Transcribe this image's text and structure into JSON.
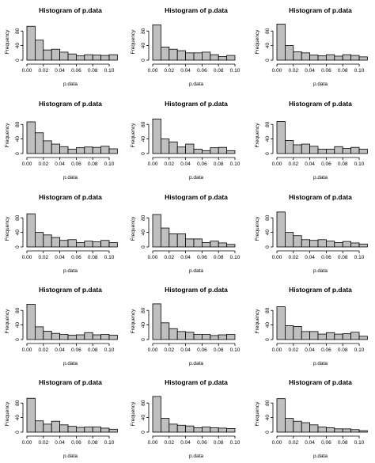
{
  "chart_data": [
    {
      "type": "bar",
      "title": "Histogram of p.data",
      "xlabel": "p.data",
      "ylabel": "Frequency",
      "bin_edges": [
        0,
        0.01,
        0.02,
        0.03,
        0.04,
        0.05,
        0.06,
        0.07,
        0.08,
        0.09,
        0.1,
        0.11
      ],
      "values": [
        93,
        55,
        28,
        30,
        22,
        17,
        12,
        15,
        14,
        13,
        15
      ],
      "xticks": [
        "0.00",
        "0.02",
        "0.04",
        "0.06",
        "0.08",
        "0.10"
      ],
      "yticks": [
        "0",
        "40",
        "80"
      ],
      "ylim": [
        0,
        100
      ]
    },
    {
      "type": "bar",
      "title": "Histogram of p.data",
      "xlabel": "p.data",
      "ylabel": "Frequency",
      "bin_edges": [
        0,
        0.01,
        0.02,
        0.03,
        0.04,
        0.05,
        0.06,
        0.07,
        0.08,
        0.09,
        0.1
      ],
      "values": [
        97,
        36,
        30,
        26,
        20,
        20,
        22,
        15,
        10,
        13
      ],
      "xticks": [
        "0.00",
        "0.02",
        "0.04",
        "0.06",
        "0.08",
        "0.10"
      ],
      "yticks": [
        "0",
        "40",
        "80"
      ],
      "ylim": [
        0,
        100
      ]
    },
    {
      "type": "bar",
      "title": "Histogram of p.data",
      "xlabel": "p.data",
      "ylabel": "Frequency",
      "bin_edges": [
        0,
        0.01,
        0.02,
        0.03,
        0.04,
        0.05,
        0.06,
        0.07,
        0.08,
        0.09,
        0.1,
        0.11
      ],
      "values": [
        99,
        40,
        23,
        20,
        14,
        12,
        15,
        11,
        15,
        13,
        9
      ],
      "xticks": [
        "0.00",
        "0.02",
        "0.04",
        "0.06",
        "0.08",
        "0.10"
      ],
      "yticks": [
        "0",
        "40",
        "80"
      ],
      "ylim": [
        0,
        100
      ]
    },
    {
      "type": "bar",
      "title": "Histogram of p.data",
      "xlabel": "p.data",
      "ylabel": "Frequency",
      "bin_edges": [
        0,
        0.01,
        0.02,
        0.03,
        0.04,
        0.05,
        0.06,
        0.07,
        0.08,
        0.09,
        0.1,
        0.11
      ],
      "values": [
        87,
        57,
        35,
        26,
        19,
        12,
        16,
        18,
        17,
        20,
        13
      ],
      "xticks": [
        "0.00",
        "0.02",
        "0.04",
        "0.06",
        "0.08",
        "0.10"
      ],
      "yticks": [
        "0",
        "40",
        "80"
      ],
      "ylim": [
        0,
        100
      ]
    },
    {
      "type": "bar",
      "title": "Histogram of p.data",
      "xlabel": "p.data",
      "ylabel": "Frequency",
      "bin_edges": [
        0,
        0.01,
        0.02,
        0.03,
        0.04,
        0.05,
        0.06,
        0.07,
        0.08,
        0.09,
        0.1
      ],
      "values": [
        95,
        40,
        32,
        18,
        26,
        12,
        8,
        16,
        17,
        8
      ],
      "xticks": [
        "0.00",
        "0.02",
        "0.04",
        "0.06",
        "0.08",
        "0.10"
      ],
      "yticks": [
        "0",
        "40",
        "80"
      ],
      "ylim": [
        0,
        100
      ]
    },
    {
      "type": "bar",
      "title": "Histogram of p.data",
      "xlabel": "p.data",
      "ylabel": "Frequency",
      "bin_edges": [
        0,
        0.01,
        0.02,
        0.03,
        0.04,
        0.05,
        0.06,
        0.07,
        0.08,
        0.09,
        0.1,
        0.11
      ],
      "values": [
        88,
        36,
        24,
        26,
        20,
        12,
        12,
        19,
        14,
        17,
        12
      ],
      "xticks": [
        "0.00",
        "0.02",
        "0.04",
        "0.06",
        "0.08",
        "0.10"
      ],
      "yticks": [
        "0",
        "40",
        "80"
      ],
      "ylim": [
        0,
        100
      ]
    },
    {
      "type": "bar",
      "title": "Histogram of p.data",
      "xlabel": "p.data",
      "ylabel": "Frequency",
      "bin_edges": [
        0,
        0.01,
        0.02,
        0.03,
        0.04,
        0.05,
        0.06,
        0.07,
        0.08,
        0.09,
        0.1,
        0.11
      ],
      "values": [
        91,
        40,
        33,
        26,
        18,
        20,
        12,
        16,
        14,
        18,
        12
      ],
      "xticks": [
        "0.00",
        "0.02",
        "0.04",
        "0.06",
        "0.08",
        "0.10"
      ],
      "yticks": [
        "0",
        "40",
        "80"
      ],
      "ylim": [
        0,
        100
      ]
    },
    {
      "type": "bar",
      "title": "Histogram of p.data",
      "xlabel": "p.data",
      "ylabel": "Frequency",
      "bin_edges": [
        0,
        0.01,
        0.02,
        0.03,
        0.04,
        0.05,
        0.06,
        0.07,
        0.08,
        0.09,
        0.1
      ],
      "values": [
        89,
        52,
        36,
        36,
        22,
        22,
        12,
        16,
        11,
        7
      ],
      "xticks": [
        "0.00",
        "0.02",
        "0.04",
        "0.06",
        "0.08",
        "0.10"
      ],
      "yticks": [
        "0",
        "40",
        "80"
      ],
      "ylim": [
        0,
        100
      ]
    },
    {
      "type": "bar",
      "title": "Histogram of p.data",
      "xlabel": "p.data",
      "ylabel": "Frequency",
      "bin_edges": [
        0,
        0.01,
        0.02,
        0.03,
        0.04,
        0.05,
        0.06,
        0.07,
        0.08,
        0.09,
        0.1,
        0.11
      ],
      "values": [
        96,
        40,
        31,
        20,
        18,
        20,
        16,
        12,
        15,
        11,
        8
      ],
      "xticks": [
        "0.00",
        "0.02",
        "0.04",
        "0.06",
        "0.08",
        "0.10"
      ],
      "yticks": [
        "0",
        "40",
        "80"
      ],
      "ylim": [
        0,
        100
      ]
    },
    {
      "type": "bar",
      "title": "Histogram of p.data",
      "xlabel": "p.data",
      "ylabel": "Frequency",
      "bin_edges": [
        0,
        0.01,
        0.02,
        0.03,
        0.04,
        0.05,
        0.06,
        0.07,
        0.08,
        0.09,
        0.1,
        0.11
      ],
      "values": [
        97,
        35,
        23,
        17,
        14,
        12,
        13,
        19,
        13,
        14,
        12
      ],
      "xticks": [
        "0.00",
        "0.02",
        "0.04",
        "0.06",
        "0.08",
        "0.10"
      ],
      "yticks": [
        "0",
        "40",
        "80"
      ],
      "ylim": [
        0,
        100
      ]
    },
    {
      "type": "bar",
      "title": "Histogram of p.data",
      "xlabel": "p.data",
      "ylabel": "Frequency",
      "bin_edges": [
        0,
        0.01,
        0.02,
        0.03,
        0.04,
        0.05,
        0.06,
        0.07,
        0.08,
        0.09,
        0.1
      ],
      "values": [
        98,
        46,
        30,
        22,
        20,
        14,
        14,
        11,
        13,
        14
      ],
      "xticks": [
        "0.00",
        "0.02",
        "0.04",
        "0.06",
        "0.08",
        "0.10"
      ],
      "yticks": [
        "0",
        "40",
        "80"
      ],
      "ylim": [
        0,
        100
      ]
    },
    {
      "type": "bar",
      "title": "Histogram of p.data",
      "xlabel": "p.data",
      "ylabel": "Frequency",
      "bin_edges": [
        0,
        0.01,
        0.02,
        0.03,
        0.04,
        0.05,
        0.06,
        0.07,
        0.08,
        0.09,
        0.1,
        0.11
      ],
      "values": [
        90,
        38,
        36,
        22,
        22,
        15,
        19,
        15,
        16,
        20,
        9
      ],
      "xticks": [
        "0.00",
        "0.02",
        "0.04",
        "0.06",
        "0.08",
        "0.10"
      ],
      "yticks": [
        "0",
        "40",
        "80"
      ],
      "ylim": [
        0,
        100
      ]
    },
    {
      "type": "bar",
      "title": "Histogram of p.data",
      "xlabel": "p.data",
      "ylabel": "Frequency",
      "bin_edges": [
        0,
        0.01,
        0.02,
        0.03,
        0.04,
        0.05,
        0.06,
        0.07,
        0.08,
        0.09,
        0.1,
        0.11
      ],
      "values": [
        93,
        31,
        22,
        30,
        20,
        16,
        13,
        14,
        14,
        11,
        8
      ],
      "xticks": [
        "0.00",
        "0.02",
        "0.04",
        "0.06",
        "0.08",
        "0.10"
      ],
      "yticks": [
        "0",
        "40",
        "80"
      ],
      "ylim": [
        0,
        100
      ]
    },
    {
      "type": "bar",
      "title": "Histogram of p.data",
      "xlabel": "p.data",
      "ylabel": "Frequency",
      "bin_edges": [
        0,
        0.01,
        0.02,
        0.03,
        0.04,
        0.05,
        0.06,
        0.07,
        0.08,
        0.09,
        0.1
      ],
      "values": [
        98,
        38,
        22,
        19,
        17,
        12,
        14,
        12,
        11,
        10
      ],
      "xticks": [
        "0.00",
        "0.02",
        "0.04",
        "0.06",
        "0.08",
        "0.10"
      ],
      "yticks": [
        "0",
        "40",
        "80"
      ],
      "ylim": [
        0,
        100
      ]
    },
    {
      "type": "bar",
      "title": "Histogram of p.data",
      "xlabel": "p.data",
      "ylabel": "Frequency",
      "bin_edges": [
        0,
        0.01,
        0.02,
        0.03,
        0.04,
        0.05,
        0.06,
        0.07,
        0.08,
        0.09,
        0.1,
        0.11
      ],
      "values": [
        92,
        38,
        30,
        26,
        20,
        14,
        12,
        9,
        9,
        7,
        4
      ],
      "xticks": [
        "0.00",
        "0.02",
        "0.04",
        "0.06",
        "0.08",
        "0.10"
      ],
      "yticks": [
        "0",
        "40",
        "80"
      ],
      "ylim": [
        0,
        100
      ]
    }
  ]
}
